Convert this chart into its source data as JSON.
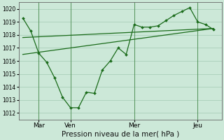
{
  "bg_color": "#cce8d8",
  "grid_color": "#aacfba",
  "line_color": "#1a6b1a",
  "marker_color": "#1a6b1a",
  "xlabel": "Pression niveau de la mer( hPa )",
  "xlabel_fontsize": 7.5,
  "ylim": [
    1011.5,
    1020.5
  ],
  "yticks": [
    1012,
    1013,
    1014,
    1015,
    1016,
    1017,
    1018,
    1019,
    1020
  ],
  "xtick_labels": [
    "Mar",
    "Ven",
    "Mer",
    "Jeu"
  ],
  "xtick_positions": [
    8,
    24,
    56,
    88
  ],
  "vline_positions": [
    8,
    24,
    56,
    88
  ],
  "series1_x": [
    0,
    4,
    8,
    12,
    16,
    20,
    24,
    28,
    32,
    36,
    40,
    44,
    48,
    52,
    56,
    60,
    64,
    68,
    72,
    76,
    80,
    84,
    88,
    92,
    96
  ],
  "series1_y": [
    1019.3,
    1018.3,
    1016.6,
    1015.9,
    1014.7,
    1013.2,
    1012.4,
    1012.4,
    1013.6,
    1013.5,
    1015.3,
    1016.0,
    1017.0,
    1016.5,
    1018.8,
    1018.6,
    1018.6,
    1018.7,
    1019.1,
    1019.5,
    1019.8,
    1020.1,
    1019.0,
    1018.8,
    1018.4
  ],
  "series2_x": [
    0,
    96
  ],
  "series2_y": [
    1016.5,
    1018.5
  ],
  "series3_x": [
    0,
    96
  ],
  "series3_y": [
    1017.8,
    1018.5
  ],
  "xlim": [
    -2,
    100
  ],
  "ytick_fontsize": 5.5,
  "xtick_fontsize": 6.5,
  "marker_size": 2.0,
  "linewidth": 0.9
}
